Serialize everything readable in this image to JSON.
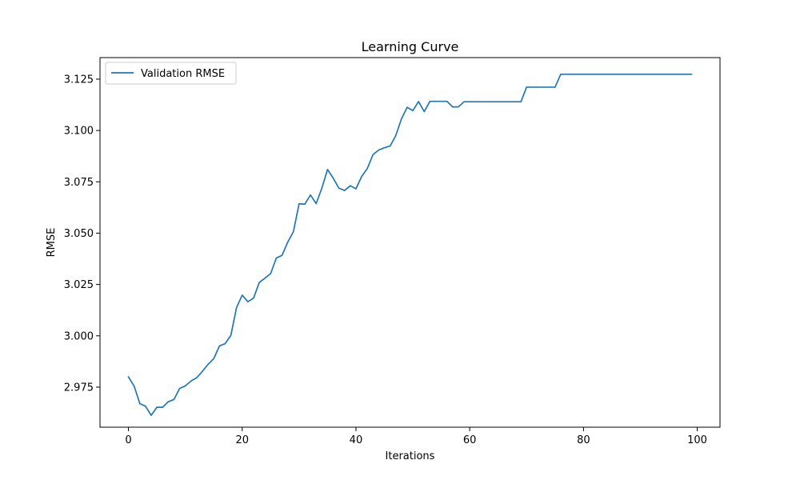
{
  "chart_data": {
    "type": "line",
    "title": "Learning Curve",
    "xlabel": "Iterations",
    "ylabel": "RMSE",
    "xlim": [
      -5,
      104
    ],
    "ylim": [
      2.9555,
      3.1355
    ],
    "xticks": [
      0,
      20,
      40,
      60,
      80,
      100
    ],
    "xtick_labels": [
      "0",
      "20",
      "40",
      "60",
      "80",
      "100"
    ],
    "yticks": [
      2.975,
      3.0,
      3.025,
      3.05,
      3.075,
      3.1,
      3.125
    ],
    "ytick_labels": [
      "2.975",
      "3.000",
      "3.025",
      "3.050",
      "3.075",
      "3.100",
      "3.125"
    ],
    "grid": false,
    "legend": {
      "position": "top-left",
      "entries": [
        "Validation RMSE"
      ]
    },
    "series": [
      {
        "name": "Validation RMSE",
        "color": "#1f77b4",
        "x": [
          0,
          1,
          2,
          3,
          4,
          5,
          6,
          7,
          8,
          9,
          10,
          11,
          12,
          13,
          14,
          15,
          16,
          17,
          18,
          19,
          20,
          21,
          22,
          23,
          24,
          25,
          26,
          27,
          28,
          29,
          30,
          31,
          32,
          33,
          34,
          35,
          36,
          37,
          38,
          39,
          40,
          41,
          42,
          43,
          44,
          45,
          46,
          47,
          48,
          49,
          50,
          51,
          52,
          53,
          54,
          55,
          56,
          57,
          58,
          59,
          60,
          61,
          62,
          63,
          64,
          65,
          66,
          67,
          68,
          69,
          70,
          71,
          72,
          73,
          74,
          75,
          76,
          77,
          78,
          79,
          80,
          81,
          82,
          83,
          84,
          85,
          86,
          87,
          88,
          89,
          90,
          91,
          92,
          93,
          94,
          95,
          96,
          97,
          98,
          99
        ],
        "values": [
          2.98,
          2.9755,
          2.967,
          2.9657,
          2.9613,
          2.9652,
          2.9652,
          2.9679,
          2.969,
          2.9744,
          2.9756,
          2.978,
          2.9796,
          2.9827,
          2.9861,
          2.9889,
          2.9951,
          2.9962,
          3.0002,
          3.0137,
          3.0198,
          3.0166,
          3.0184,
          3.026,
          3.0281,
          3.0303,
          3.0379,
          3.0392,
          3.0456,
          3.0507,
          3.0643,
          3.0641,
          3.0686,
          3.0644,
          3.0719,
          3.081,
          3.0768,
          3.0719,
          3.0708,
          3.0731,
          3.0716,
          3.0776,
          3.0815,
          3.0883,
          3.0905,
          3.0916,
          3.0924,
          3.0975,
          3.1057,
          3.1113,
          3.1097,
          3.1141,
          3.1092,
          3.1142,
          3.1142,
          3.1142,
          3.1142,
          3.1115,
          3.1115,
          3.114,
          3.114,
          3.114,
          3.114,
          3.114,
          3.114,
          3.114,
          3.114,
          3.114,
          3.114,
          3.114,
          3.1211,
          3.1211,
          3.1211,
          3.1211,
          3.1211,
          3.1211,
          3.1274,
          3.1274,
          3.1274,
          3.1274,
          3.1274,
          3.1274,
          3.1274,
          3.1274,
          3.1274,
          3.1274,
          3.1274,
          3.1274,
          3.1274,
          3.1274,
          3.1274,
          3.1274,
          3.1274,
          3.1274,
          3.1274,
          3.1274,
          3.1274,
          3.1274,
          3.1274,
          3.1274
        ]
      }
    ]
  }
}
